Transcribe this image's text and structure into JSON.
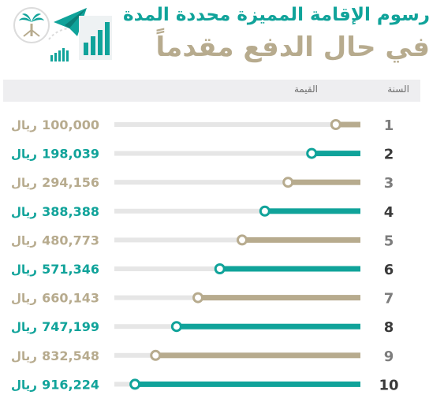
{
  "header": {
    "title_line1": "رسوم الإقامة المميزة محددة المدة",
    "title_line2": "في حال الدفع مقدماً"
  },
  "columns": {
    "year": "السنة",
    "value": "القيمة"
  },
  "colors": {
    "teal": "#10a39a",
    "beige": "#b7ab8e",
    "track": "#e6e6e6",
    "year_text": "#7d7d7d",
    "header_bg": "#eeeef0"
  },
  "chart_data": {
    "type": "bar",
    "orientation": "horizontal",
    "categories": [
      "1",
      "2",
      "3",
      "4",
      "5",
      "6",
      "7",
      "8",
      "9",
      "10"
    ],
    "values": [
      100000,
      198039,
      294156,
      388388,
      480773,
      571346,
      660143,
      747199,
      832548,
      916224
    ],
    "labels": [
      "100,000",
      "198,039",
      "294,156",
      "388,388",
      "480,773",
      "571,346",
      "660,143",
      "747,199",
      "832,548",
      "916,224"
    ],
    "currency": "ريال",
    "xlim": [
      0,
      1000000
    ]
  }
}
